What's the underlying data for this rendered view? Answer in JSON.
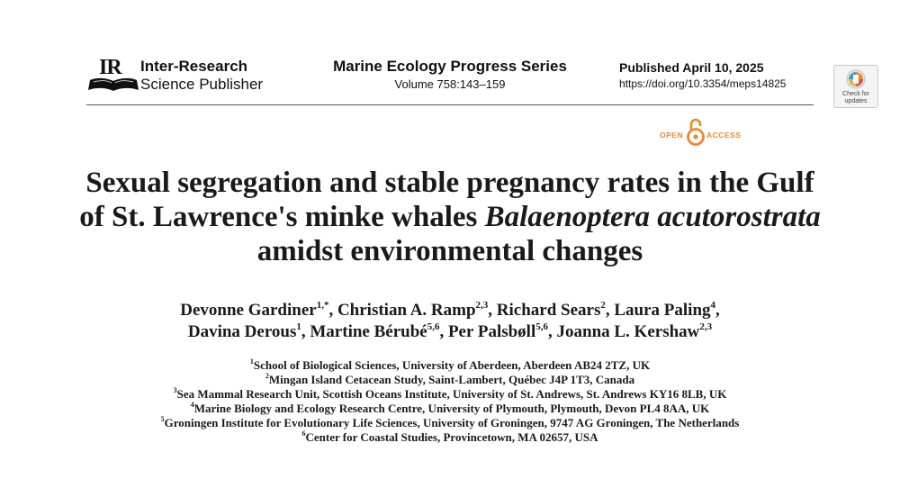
{
  "publisher": {
    "logo_letters": "IR",
    "line1": "Inter-Research",
    "line2": "Science Publisher"
  },
  "journal": {
    "name": "Marine Ecology Progress Series",
    "volume": "Volume 758:143–159"
  },
  "publication": {
    "published": "Published April 10, 2025",
    "doi": "https://doi.org/10.3354/meps14825"
  },
  "badge": {
    "check_line1": "Check for",
    "check_line2": "updates"
  },
  "open_access": {
    "open": "OPEN",
    "access": "ACCESS",
    "color": "#f2872a"
  },
  "title": {
    "part1": "Sexual segregation and stable pregnancy rates in the Gulf of St. Lawrence's minke whales ",
    "species": "Balaenoptera acutorostrata",
    "part2": " amidst environmental changes"
  },
  "authors": [
    {
      "name": "Devonne Gardiner",
      "sup": "1,*",
      "sep": ", "
    },
    {
      "name": "Christian A. Ramp",
      "sup": "2,3",
      "sep": ", "
    },
    {
      "name": "Richard Sears",
      "sup": "2",
      "sep": ", "
    },
    {
      "name": "Laura Paling",
      "sup": "4",
      "sep": ","
    },
    {
      "name": "Davina Derous",
      "sup": "1",
      "sep": ", "
    },
    {
      "name": "Martine Bérubé",
      "sup": "5,6",
      "sep": ", "
    },
    {
      "name": "Per Palsbøll",
      "sup": "5,6",
      "sep": ", "
    },
    {
      "name": "Joanna L. Kershaw",
      "sup": "2,3",
      "sep": ""
    }
  ],
  "affiliations": [
    {
      "num": "1",
      "text": "School of Biological Sciences, University of Aberdeen, Aberdeen AB24 2TZ, UK"
    },
    {
      "num": "2",
      "text": "Mingan Island Cetacean Study, Saint-Lambert, Québec J4P 1T3, Canada"
    },
    {
      "num": "3",
      "text": "Sea Mammal Research Unit, Scottish Oceans Institute, University of St. Andrews, St. Andrews KY16 8LB, UK"
    },
    {
      "num": "4",
      "text": "Marine Biology and Ecology Research Centre, University of Plymouth, Plymouth, Devon PL4 8AA, UK"
    },
    {
      "num": "5",
      "text": "Groningen Institute for Evolutionary Life Sciences, University of Groningen, 9747 AG Groningen, The Netherlands"
    },
    {
      "num": "6",
      "text": "Center for Coastal Studies, Provincetown, MA 02657, USA"
    }
  ]
}
